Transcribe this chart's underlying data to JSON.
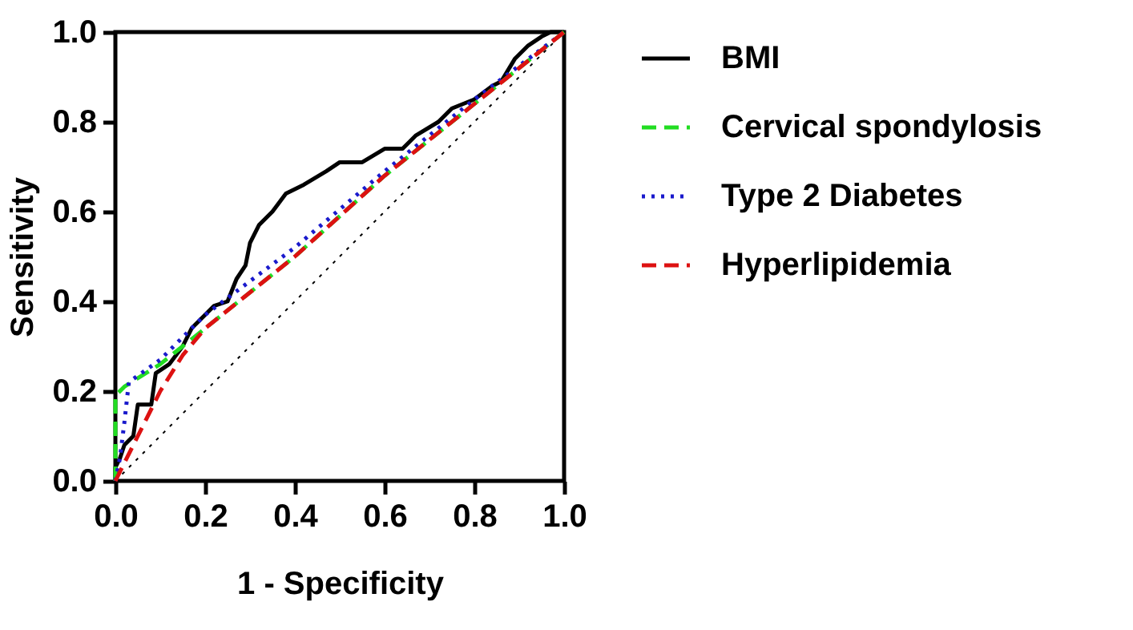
{
  "chart_data": {
    "type": "line",
    "xlabel": "1 - Specificity",
    "ylabel": "Sensitivity",
    "xlim": [
      0,
      1
    ],
    "ylim": [
      0,
      1
    ],
    "xticks": [
      {
        "value": 0,
        "label": "0.0"
      },
      {
        "value": 0.2,
        "label": "0.2"
      },
      {
        "value": 0.4,
        "label": "0.4"
      },
      {
        "value": 0.6,
        "label": "0.6"
      },
      {
        "value": 0.8,
        "label": "0.8"
      },
      {
        "value": 1,
        "label": "1.0"
      }
    ],
    "yticks": [
      {
        "value": 0,
        "label": "0.0"
      },
      {
        "value": 0.2,
        "label": "0.2"
      },
      {
        "value": 0.4,
        "label": "0.4"
      },
      {
        "value": 0.6,
        "label": "0.6"
      },
      {
        "value": 0.8,
        "label": "0.8"
      },
      {
        "value": 1,
        "label": "1.0"
      }
    ],
    "grid": false,
    "legend": "right",
    "series": [
      {
        "name": "BMI",
        "color": "#000000",
        "line_style": "solid",
        "x": [
          0,
          0,
          0.01,
          0.02,
          0.04,
          0.05,
          0.08,
          0.09,
          0.12,
          0.15,
          0.17,
          0.2,
          0.22,
          0.25,
          0.27,
          0.29,
          0.3,
          0.32,
          0.35,
          0.38,
          0.42,
          0.47,
          0.5,
          0.55,
          0.6,
          0.64,
          0.67,
          0.72,
          0.75,
          0.8,
          0.84,
          0.86,
          0.89,
          0.92,
          0.95,
          0.97,
          1
        ],
        "values": [
          0,
          0.03,
          0.05,
          0.08,
          0.1,
          0.17,
          0.17,
          0.24,
          0.26,
          0.3,
          0.34,
          0.37,
          0.39,
          0.4,
          0.45,
          0.48,
          0.53,
          0.57,
          0.6,
          0.64,
          0.66,
          0.69,
          0.71,
          0.71,
          0.74,
          0.74,
          0.77,
          0.8,
          0.83,
          0.85,
          0.88,
          0.89,
          0.94,
          0.97,
          0.99,
          1,
          1
        ]
      },
      {
        "name": "Cervical spondylosis",
        "color": "#22dd22",
        "line_style": "dashed",
        "x": [
          0,
          0,
          0.02,
          0.1,
          0.15,
          0.2,
          0.4,
          0.6,
          0.8,
          1
        ],
        "values": [
          0,
          0.19,
          0.21,
          0.26,
          0.3,
          0.34,
          0.5,
          0.68,
          0.84,
          1
        ]
      },
      {
        "name": "Type 2 Diabetes",
        "color": "#1a1acc",
        "line_style": "dotted",
        "x": [
          0,
          0.01,
          0.02,
          0.03,
          0.1,
          0.15,
          0.2,
          0.4,
          0.6,
          0.8,
          1
        ],
        "values": [
          0,
          0.05,
          0.13,
          0.22,
          0.27,
          0.32,
          0.37,
          0.52,
          0.69,
          0.85,
          1
        ]
      },
      {
        "name": "Hyperlipidemia",
        "color": "#dd1111",
        "line_style": "dashed",
        "x": [
          0,
          0.05,
          0.1,
          0.15,
          0.2,
          0.4,
          0.6,
          0.8,
          1
        ],
        "values": [
          0,
          0.1,
          0.2,
          0.28,
          0.34,
          0.5,
          0.68,
          0.84,
          1
        ]
      },
      {
        "color": "#000000",
        "line_style": "dotted",
        "x": [
          0,
          1
        ],
        "values": [
          0,
          1
        ]
      }
    ]
  }
}
